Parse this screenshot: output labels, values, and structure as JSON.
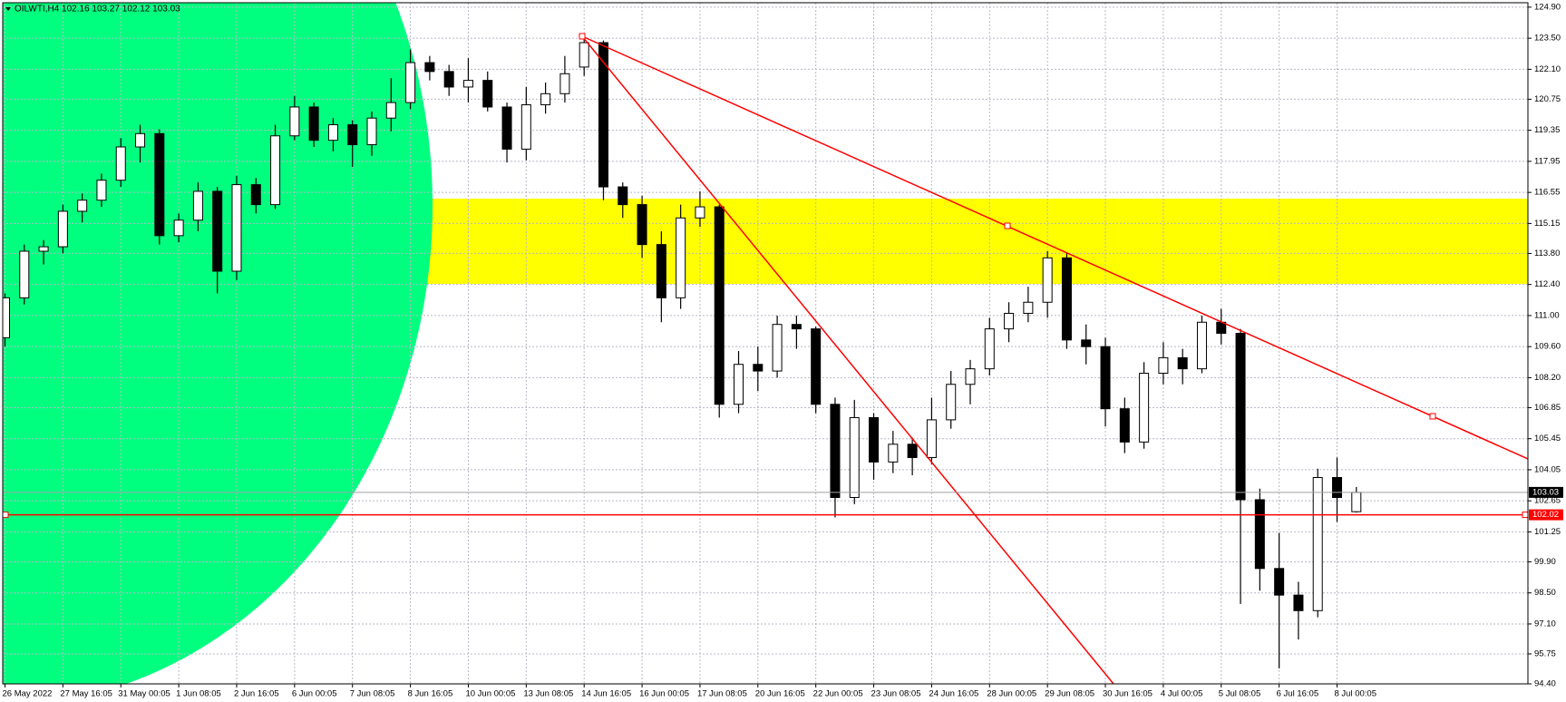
{
  "chart_data": {
    "type": "candlestick",
    "title": "OILWTI,H4 102.16 103.27 102.12 103.03",
    "categories": [
      "26 May 2022",
      null,
      null,
      "27 May 16:05",
      null,
      null,
      "31 May 00:05",
      null,
      null,
      "1 Jun 08:05",
      null,
      null,
      "2 Jun 16:05",
      null,
      null,
      "6 Jun 00:05",
      null,
      null,
      "7 Jun 08:05",
      null,
      null,
      "8 Jun 16:05",
      null,
      null,
      "10 Jun 00:05",
      null,
      null,
      "13 Jun 08:05",
      null,
      null,
      "14 Jun 16:05",
      null,
      null,
      "16 Jun 00:05",
      null,
      null,
      "17 Jun 08:05",
      null,
      null,
      "20 Jun 16:05",
      null,
      null,
      "22 Jun 00:05",
      null,
      null,
      "23 Jun 08:05",
      null,
      null,
      "24 Jun 16:05",
      null,
      null,
      "28 Jun 00:05",
      null,
      null,
      "29 Jun 08:05",
      null,
      null,
      "30 Jun 16:05",
      null,
      null,
      "4 Jul 00:05",
      null,
      null,
      "5 Jul 08:05",
      null,
      null,
      "6 Jul 16:05",
      null,
      null,
      "8 Jul 00:05",
      null
    ],
    "open": [
      110.0,
      111.8,
      113.9,
      114.1,
      115.7,
      116.2,
      117.1,
      118.6,
      119.2,
      114.6,
      115.3,
      116.6,
      113.0,
      116.9,
      116.0,
      119.1,
      120.4,
      118.9,
      119.6,
      118.7,
      119.9,
      120.6,
      122.4,
      122.0,
      121.3,
      121.6,
      120.4,
      118.5,
      120.5,
      121.0,
      122.2,
      123.3,
      116.8,
      116.0,
      114.2,
      111.8,
      115.4,
      115.9,
      107.0,
      108.8,
      108.5,
      110.6,
      110.4,
      107.0,
      102.8,
      106.4,
      104.4,
      105.2,
      104.6,
      106.3,
      107.9,
      108.6,
      110.4,
      111.1,
      111.6,
      113.6,
      109.9,
      109.6,
      106.8,
      105.3,
      108.4,
      109.1,
      108.6,
      110.7,
      110.2,
      102.7,
      99.6,
      98.4,
      97.7,
      103.7,
      102.16
    ],
    "high": [
      112.0,
      114.2,
      114.4,
      116.0,
      116.5,
      117.4,
      119.0,
      119.6,
      119.4,
      115.6,
      117.0,
      116.8,
      117.3,
      117.2,
      119.6,
      120.9,
      120.6,
      119.9,
      119.8,
      120.2,
      121.7,
      123.0,
      122.7,
      122.3,
      122.6,
      122.0,
      120.6,
      121.3,
      121.5,
      122.7,
      123.5,
      123.4,
      117.0,
      116.4,
      114.8,
      116.0,
      116.6,
      116.0,
      109.4,
      109.6,
      111.0,
      111.0,
      110.5,
      107.3,
      107.2,
      106.6,
      105.8,
      105.5,
      107.3,
      108.5,
      109.0,
      110.9,
      111.6,
      112.3,
      113.9,
      113.8,
      110.6,
      110.0,
      107.3,
      108.9,
      109.8,
      109.5,
      111.0,
      111.3,
      110.4,
      103.2,
      101.2,
      99.0,
      104.1,
      104.6,
      103.27
    ],
    "low": [
      109.6,
      111.5,
      113.3,
      113.8,
      115.2,
      115.9,
      116.8,
      117.9,
      114.2,
      114.3,
      114.8,
      112.0,
      112.6,
      115.6,
      115.8,
      118.9,
      118.6,
      118.4,
      117.7,
      118.2,
      119.3,
      120.3,
      121.6,
      120.9,
      120.6,
      120.2,
      117.9,
      118.0,
      120.1,
      120.6,
      121.8,
      116.2,
      115.4,
      113.6,
      110.7,
      111.3,
      115.0,
      106.4,
      106.6,
      107.6,
      108.2,
      109.5,
      106.6,
      101.9,
      102.5,
      103.6,
      103.9,
      103.8,
      104.3,
      105.9,
      107.0,
      108.3,
      109.8,
      110.7,
      110.9,
      109.5,
      108.8,
      106.0,
      104.8,
      105.0,
      107.9,
      107.9,
      108.4,
      109.7,
      98.0,
      98.6,
      95.1,
      96.4,
      97.4,
      101.7,
      102.12
    ],
    "close": [
      111.8,
      113.9,
      114.1,
      115.7,
      116.2,
      117.1,
      118.6,
      119.2,
      114.6,
      115.3,
      116.6,
      113.0,
      116.9,
      116.0,
      119.1,
      120.4,
      118.9,
      119.6,
      118.7,
      119.9,
      120.6,
      122.4,
      122.0,
      121.3,
      121.6,
      120.4,
      118.5,
      120.5,
      121.0,
      121.9,
      123.3,
      116.8,
      116.0,
      114.2,
      111.8,
      115.4,
      115.9,
      107.0,
      108.8,
      108.5,
      110.6,
      110.4,
      107.0,
      102.8,
      106.4,
      104.4,
      105.2,
      104.6,
      106.3,
      107.9,
      108.6,
      110.4,
      111.1,
      111.6,
      113.6,
      109.9,
      109.6,
      106.8,
      105.3,
      108.4,
      109.1,
      108.6,
      110.7,
      110.2,
      102.7,
      99.6,
      98.4,
      97.7,
      103.7,
      102.8,
      103.03
    ],
    "ylim": [
      94.4,
      125.1
    ],
    "yticks": [
      {
        "value": 94.4,
        "label": "94.40"
      },
      {
        "value": 95.75,
        "label": "95.75"
      },
      {
        "value": 97.1,
        "label": "97.10"
      },
      {
        "value": 98.5,
        "label": "98.50"
      },
      {
        "value": 99.9,
        "label": "99.90"
      },
      {
        "value": 101.25,
        "label": "101.25"
      },
      {
        "value": 102.65,
        "label": "102.65"
      },
      {
        "value": 104.05,
        "label": "104.05"
      },
      {
        "value": 105.45,
        "label": "105.45"
      },
      {
        "value": 106.85,
        "label": "106.85"
      },
      {
        "value": 108.2,
        "label": "108.20"
      },
      {
        "value": 109.6,
        "label": "109.60"
      },
      {
        "value": 111,
        "label": "111.00"
      },
      {
        "value": 112.4,
        "label": "112.40"
      },
      {
        "value": 113.8,
        "label": "113.80"
      },
      {
        "value": 115.15,
        "label": "115.15"
      },
      {
        "value": 116.55,
        "label": "116.55"
      },
      {
        "value": 117.95,
        "label": "117.95"
      },
      {
        "value": 119.35,
        "label": "119.35"
      },
      {
        "value": 120.75,
        "label": "120.75"
      },
      {
        "value": 122.1,
        "label": "122.10"
      },
      {
        "value": 123.5,
        "label": "123.50"
      },
      {
        "value": 124.9,
        "label": "124.90"
      }
    ],
    "grid": true,
    "bid_line": 103.03,
    "horizontal_line": 102.02,
    "bull_color": "#ffffff",
    "bear_color": "#000000"
  }
}
